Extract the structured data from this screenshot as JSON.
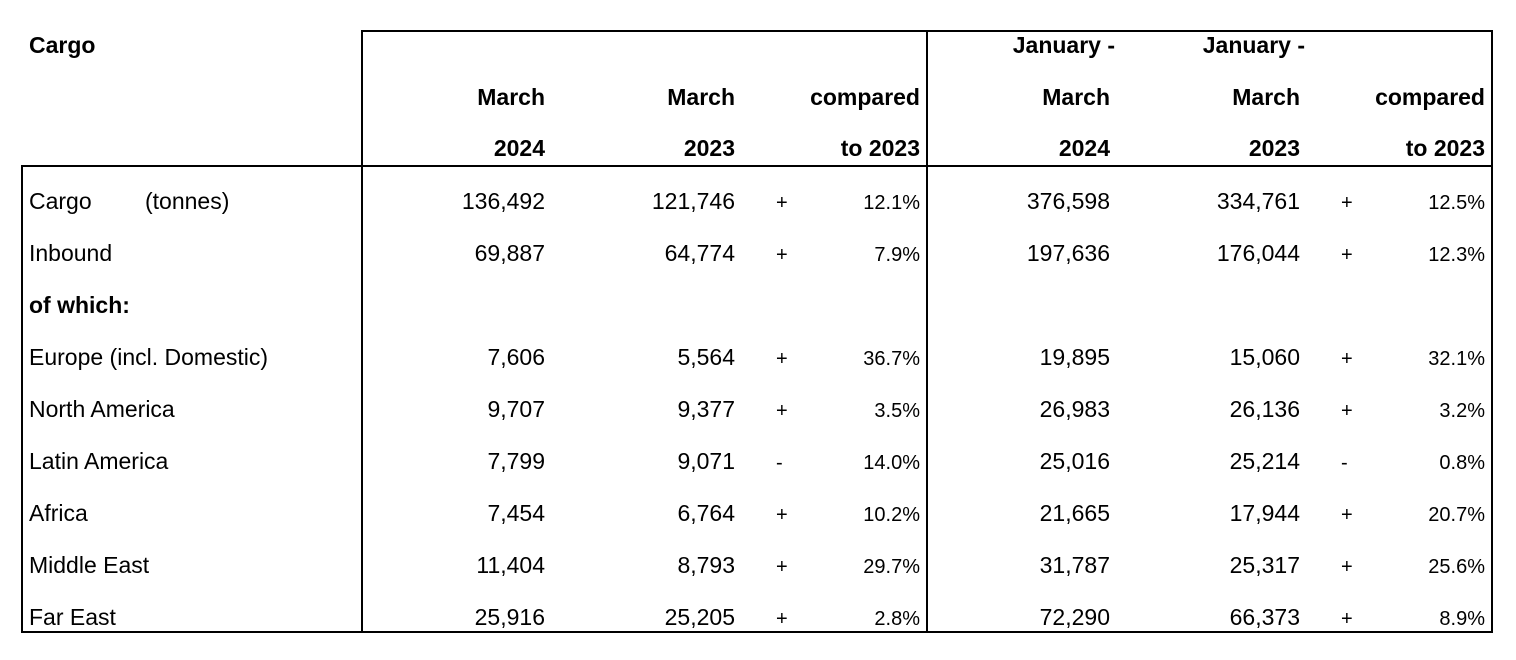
{
  "table": {
    "title": "Cargo",
    "headers": {
      "col1": [
        "",
        "March",
        "2024"
      ],
      "col2": [
        "",
        "March",
        "2023"
      ],
      "col3": [
        "",
        "compared",
        "to 2023"
      ],
      "col4": [
        "January -",
        "March",
        "2024"
      ],
      "col5": [
        "January -",
        "March",
        "2023"
      ],
      "col6": [
        "",
        "compared",
        "to 2023"
      ]
    },
    "rows": [
      {
        "label": "Cargo",
        "label_suffix": "(tonnes)",
        "v1": "136,492",
        "v2": "121,746",
        "s1": "+",
        "p1": "12.1%",
        "v3": "376,598",
        "v4": "334,761",
        "s2": "+",
        "p2": "12.5%"
      },
      {
        "label": "Inbound",
        "label_suffix": "",
        "v1": "69,887",
        "v2": "64,774",
        "s1": "+",
        "p1": "7.9%",
        "v3": "197,636",
        "v4": "176,044",
        "s2": "+",
        "p2": "12.3%"
      },
      {
        "label": "of which:",
        "label_suffix": "",
        "v1": "",
        "v2": "",
        "s1": "",
        "p1": "",
        "v3": "",
        "v4": "",
        "s2": "",
        "p2": ""
      },
      {
        "label": "Europe (incl. Domestic)",
        "label_suffix": "",
        "v1": "7,606",
        "v2": "5,564",
        "s1": "+",
        "p1": "36.7%",
        "v3": "19,895",
        "v4": "15,060",
        "s2": "+",
        "p2": "32.1%"
      },
      {
        "label": "North America",
        "label_suffix": "",
        "v1": "9,707",
        "v2": "9,377",
        "s1": "+",
        "p1": "3.5%",
        "v3": "26,983",
        "v4": "26,136",
        "s2": "+",
        "p2": "3.2%"
      },
      {
        "label": "Latin America",
        "label_suffix": "",
        "v1": "7,799",
        "v2": "9,071",
        "s1": "-",
        "p1": "14.0%",
        "v3": "25,016",
        "v4": "25,214",
        "s2": "-",
        "p2": "0.8%"
      },
      {
        "label": "Africa",
        "label_suffix": "",
        "v1": "7,454",
        "v2": "6,764",
        "s1": "+",
        "p1": "10.2%",
        "v3": "21,665",
        "v4": "17,944",
        "s2": "+",
        "p2": "20.7%"
      },
      {
        "label": "Middle East",
        "label_suffix": "",
        "v1": "11,404",
        "v2": "8,793",
        "s1": "+",
        "p1": "29.7%",
        "v3": "31,787",
        "v4": "25,317",
        "s2": "+",
        "p2": "25.6%"
      },
      {
        "label": "Far East",
        "label_suffix": "",
        "v1": "25,916",
        "v2": "25,205",
        "s1": "+",
        "p1": "2.8%",
        "v3": "72,290",
        "v4": "66,373",
        "s2": "+",
        "p2": "8.9%"
      }
    ]
  }
}
